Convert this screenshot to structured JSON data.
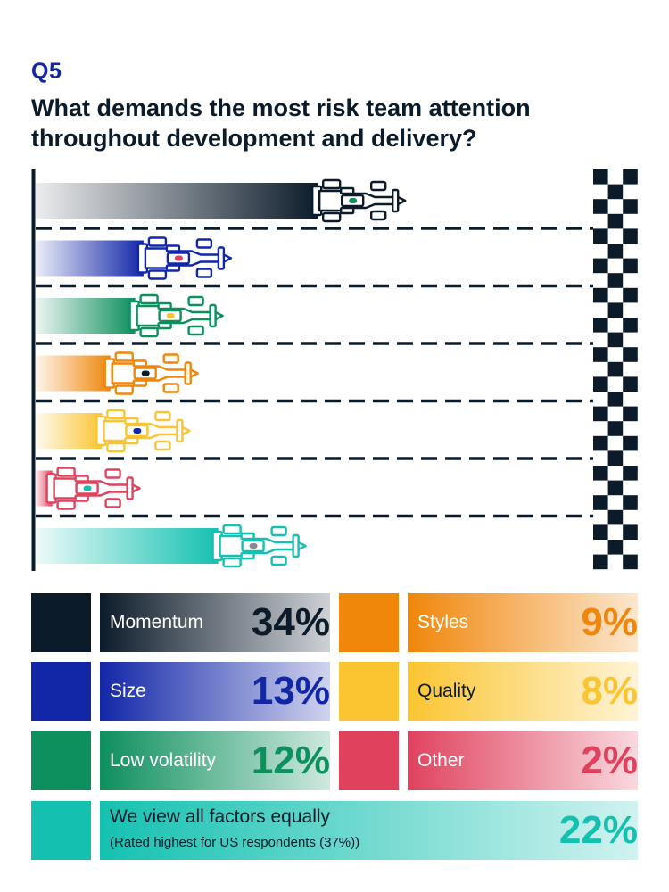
{
  "header": {
    "question_number": "Q5",
    "title": "What demands the most risk team attention throughout development and delivery?"
  },
  "chart_data": {
    "type": "bar",
    "categories": [
      "Momentum",
      "Size",
      "Low volatility",
      "Styles",
      "Quality",
      "Other",
      "We view all factors equally"
    ],
    "values": [
      34,
      13,
      12,
      9,
      8,
      2,
      22
    ],
    "unit": "%",
    "colors": [
      "#0c1b2a",
      "#1226a8",
      "#0d8f5e",
      "#f0860a",
      "#fbc531",
      "#e0425e",
      "#14c1b1"
    ],
    "car_cockpit_colors": [
      "#0d8f5e",
      "#e0425e",
      "#fbc531",
      "#0c1b2a",
      "#1226a8",
      "#14c1b1",
      "#8a8a8a"
    ],
    "legend": [
      {
        "label": "Momentum",
        "pct": "34%"
      },
      {
        "label": "Size",
        "pct": "13%"
      },
      {
        "label": "Low volatility",
        "pct": "12%"
      },
      {
        "label": "Styles",
        "pct": "9%"
      },
      {
        "label": "Quality",
        "pct": "8%"
      },
      {
        "label": "Other",
        "pct": "2%"
      },
      {
        "label": "We view all factors equally",
        "note": "(Rated highest for US respondents (37%))",
        "pct": "22%"
      }
    ]
  }
}
